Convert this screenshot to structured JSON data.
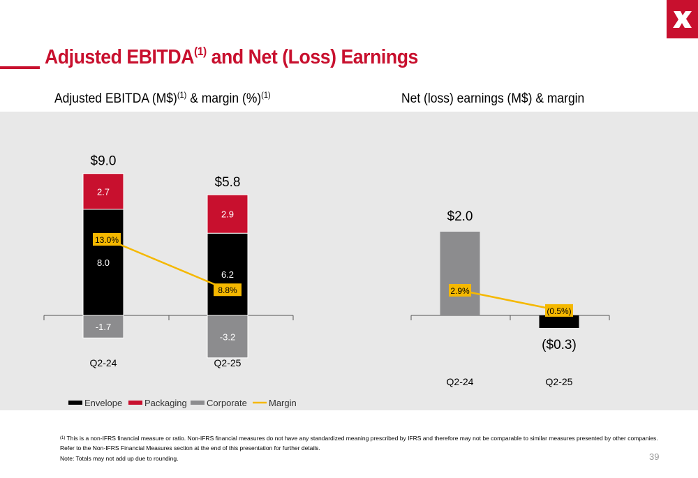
{
  "page": {
    "title": "Adjusted EBITDA",
    "title_sup": "(1)",
    "title_rest": " and Net (Loss) Earnings",
    "page_number": "39",
    "brand_color": "#c8102e"
  },
  "footnote": {
    "marker": "(1)",
    "text": " This is a non-IFRS financial measure or ratio. Non-IFRS financial measures do not have any standardized meaning prescribed by IFRS and therefore may not be comparable to similar measures presented by other companies.  Refer to the Non-IFRS Financial Measures section at the end of this presentation for further details.",
    "note": "Note: Totals may not add up due to rounding."
  },
  "legend": [
    {
      "label": "Envelope",
      "color": "#000000"
    },
    {
      "label": "Packaging",
      "color": "#c8102e"
    },
    {
      "label": "Corporate",
      "color": "#8c8c8e"
    },
    {
      "label": "Margin",
      "color": "#f5b800"
    }
  ],
  "chart_data": [
    {
      "type": "bar",
      "stacked": true,
      "title": "Adjusted EBITDA (M$)",
      "title_sup1": "(1)",
      "title_mid": " & margin (%)",
      "title_sup2": "(1)",
      "categories": [
        "Q2-24",
        "Q2-25"
      ],
      "series": [
        {
          "name": "Envelope",
          "values": [
            8.0,
            6.2
          ],
          "labels": [
            "8.0",
            "6.2"
          ],
          "color": "#000000"
        },
        {
          "name": "Packaging",
          "values": [
            2.7,
            2.9
          ],
          "labels": [
            "2.7",
            "2.9"
          ],
          "color": "#c8102e"
        },
        {
          "name": "Corporate",
          "values": [
            -1.7,
            -3.2
          ],
          "labels": [
            "-1.7",
            "-3.2"
          ],
          "color": "#8c8c8e"
        }
      ],
      "totals": [
        "$9.0",
        "$5.8"
      ],
      "margin": {
        "name": "Margin",
        "values": [
          13.0,
          8.8
        ],
        "labels": [
          "13.0%",
          "8.8%"
        ],
        "color": "#f5b800"
      }
    },
    {
      "type": "bar",
      "title": "Net (loss) earnings (M$) & margin",
      "categories": [
        "Q2-24",
        "Q2-25"
      ],
      "values": [
        2.0,
        -0.3
      ],
      "value_labels": [
        "$2.0",
        "($0.3)"
      ],
      "bar_colors": [
        "#8c8c8e",
        "#000000"
      ],
      "margin": {
        "values": [
          2.9,
          -0.5
        ],
        "labels": [
          "2.9%",
          "(0.5%)"
        ],
        "color": "#f5b800"
      }
    }
  ]
}
